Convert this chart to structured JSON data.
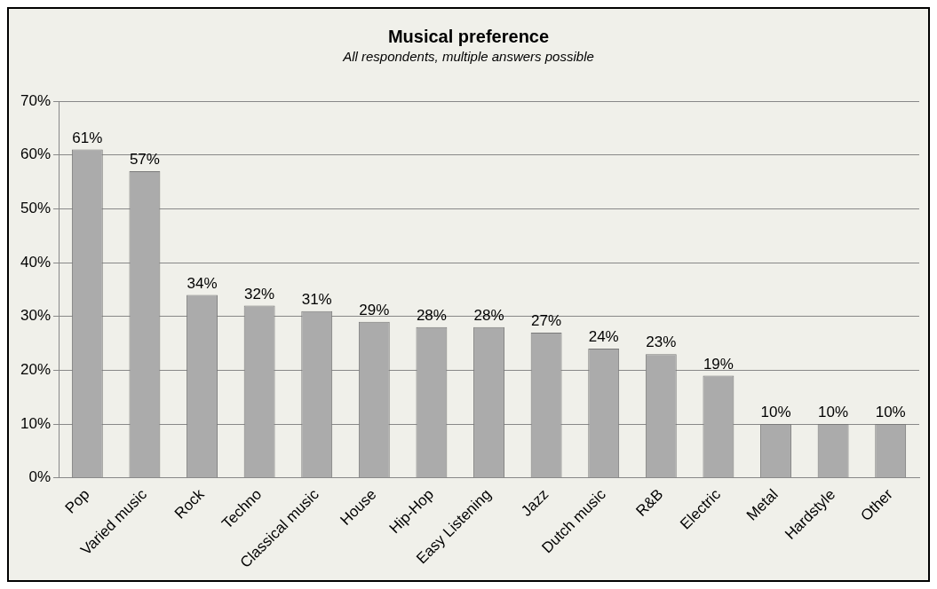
{
  "chart_data": {
    "type": "bar",
    "title": "Musical preference",
    "subtitle": "All respondents, multiple answers possible",
    "categories": [
      "Pop",
      "Varied music",
      "Rock",
      "Techno",
      "Classical music",
      "House",
      "Hip-Hop",
      "Easy Listening",
      "Jazz",
      "Dutch music",
      "R&B",
      "Electric",
      "Metal",
      "Hardstyle",
      "Other"
    ],
    "values": [
      61,
      57,
      34,
      32,
      31,
      29,
      28,
      28,
      27,
      24,
      23,
      19,
      10,
      10,
      10
    ],
    "value_labels": [
      "61%",
      "57%",
      "34%",
      "32%",
      "31%",
      "29%",
      "28%",
      "28%",
      "27%",
      "24%",
      "23%",
      "19%",
      "10%",
      "10%",
      "10%"
    ],
    "color": "#ababab",
    "ylim": [
      0,
      70
    ],
    "yticks": [
      {
        "value": 0,
        "label": "0%"
      },
      {
        "value": 10,
        "label": "10%"
      },
      {
        "value": 20,
        "label": "20%"
      },
      {
        "value": 30,
        "label": "30%"
      },
      {
        "value": 40,
        "label": "40%"
      },
      {
        "value": 50,
        "label": "50%"
      },
      {
        "value": 60,
        "label": "60%"
      },
      {
        "value": 70,
        "label": "70%"
      }
    ],
    "grid": "y",
    "legend": false
  }
}
